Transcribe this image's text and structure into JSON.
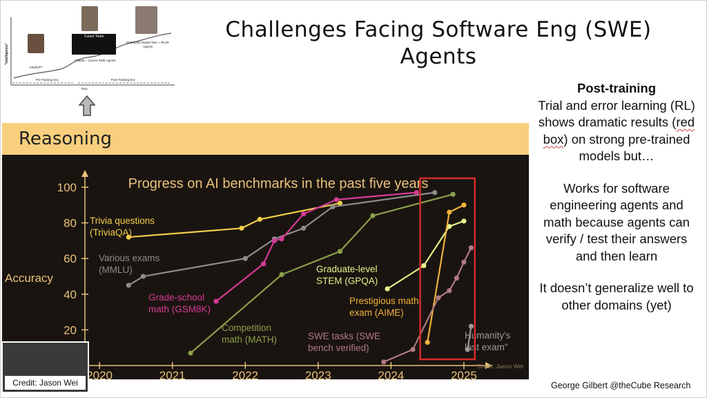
{
  "slide": {
    "title_line1": "Challenges Facing Software Eng (SWE)",
    "title_line2": "Agents",
    "footer": "George Gilbert @theCube Research"
  },
  "inset": {
    "ylabel": "\"Intelligence\"",
    "xlabel": "Time",
    "labels": {
      "chatgpt": "ChatGPT",
      "claude_cursor": "Claude + Cursor SWE Agents",
      "enterprise": "Enterprise Digital Twin + RLVR Agents",
      "pretraining": "Pre-Training Era",
      "posttraining": "Post-Training Era",
      "cursor_team": "Cursor Team"
    }
  },
  "banner": {
    "label": "Reasoning"
  },
  "credit": {
    "label": "Credit: Jason Wei"
  },
  "side_text": {
    "heading": "Post-training",
    "para1_a": "Trial and error learning (RL) shows dramatic results (",
    "para1_b": "red box",
    "para1_c": ") on strong pre-trained models but…",
    "para2": "Works for software engineering agents and math because agents can verify / test their answers and then learn",
    "para3": "It doesn’t generalize well to other domains (yet)"
  },
  "colors": {
    "chart_bg": "#1a1410",
    "axis": "#e8c27a",
    "title": "#e8c27a",
    "highlight_box": "#d42b2b"
  },
  "chart_data": {
    "type": "line",
    "title": "Progress on AI benchmarks in the past five years",
    "ylabel": "Accuracy",
    "xlabel": "",
    "credit": "Credit: Jason Wei",
    "xlim": [
      2019.8,
      2025.2
    ],
    "ylim": [
      0,
      105
    ],
    "xticks": [
      2020,
      2021,
      2022,
      2023,
      2024,
      2025
    ],
    "yticks": [
      20,
      40,
      60,
      80,
      100
    ],
    "grid": false,
    "series": [
      {
        "name": "Trivia questions (TriviaQA)",
        "color": "#f2cd4a",
        "label_lines": [
          "Trivia questions",
          "(TriviaQA)"
        ],
        "points": [
          [
            2020.4,
            72
          ],
          [
            2021.95,
            77
          ],
          [
            2022.2,
            82
          ],
          [
            2023.3,
            91
          ]
        ]
      },
      {
        "name": "Various exams (MMLU)",
        "color": "#8c8c8c",
        "label_lines": [
          "Various exams",
          "(MMLU)"
        ],
        "points": [
          [
            2020.4,
            45
          ],
          [
            2020.6,
            50
          ],
          [
            2022.0,
            60
          ],
          [
            2022.4,
            71
          ],
          [
            2022.8,
            77
          ],
          [
            2023.2,
            89
          ],
          [
            2024.6,
            97
          ]
        ]
      },
      {
        "name": "Grade-school math (GSM8K)",
        "color": "#d63a96",
        "label_lines": [
          "Grade-school",
          "math (GSM8K)"
        ],
        "points": [
          [
            2021.6,
            36
          ],
          [
            2022.25,
            57
          ],
          [
            2022.4,
            70
          ],
          [
            2022.5,
            71
          ],
          [
            2022.8,
            85
          ],
          [
            2023.25,
            93
          ],
          [
            2024.35,
            97
          ]
        ]
      },
      {
        "name": "Graduate-level STEM (GPQA)",
        "color": "#e8ef8a",
        "label_lines": [
          "Graduate-level",
          "STEM (GPQA)"
        ],
        "points": [
          [
            2023.95,
            43
          ],
          [
            2024.45,
            56
          ],
          [
            2024.8,
            78
          ],
          [
            2025.0,
            81
          ]
        ]
      },
      {
        "name": "Competition math (MATH)",
        "color": "#8aa04a",
        "label_lines": [
          "Competition",
          "math (MATH)"
        ],
        "points": [
          [
            2021.25,
            7
          ],
          [
            2022.5,
            51
          ],
          [
            2023.3,
            64
          ],
          [
            2023.75,
            84
          ],
          [
            2024.85,
            96
          ]
        ]
      },
      {
        "name": "Prestigious math exam (AIME)",
        "color": "#f0b23a",
        "label_lines": [
          "Prestigious math",
          "exam (AIME)"
        ],
        "points": [
          [
            2024.5,
            13
          ],
          [
            2024.8,
            86
          ],
          [
            2025.0,
            90
          ]
        ]
      },
      {
        "name": "SWE tasks (SWE bench verified)",
        "color": "#b07a82",
        "label_lines": [
          "SWE tasks (SWE",
          "bench verified)"
        ],
        "points": [
          [
            2023.9,
            2
          ],
          [
            2024.3,
            9
          ],
          [
            2024.65,
            38
          ],
          [
            2024.8,
            42
          ],
          [
            2024.9,
            49
          ],
          [
            2025.0,
            58
          ],
          [
            2025.1,
            66
          ]
        ]
      },
      {
        "name": "Humanity's last exam",
        "color": "#9a9a9a",
        "label_lines": [
          "Humanity's",
          "last exam\""
        ],
        "points": [
          [
            2025.05,
            9
          ],
          [
            2025.1,
            22
          ]
        ]
      }
    ],
    "highlight_box": {
      "x": [
        2024.4,
        2025.15
      ],
      "y": [
        0,
        105
      ]
    }
  }
}
